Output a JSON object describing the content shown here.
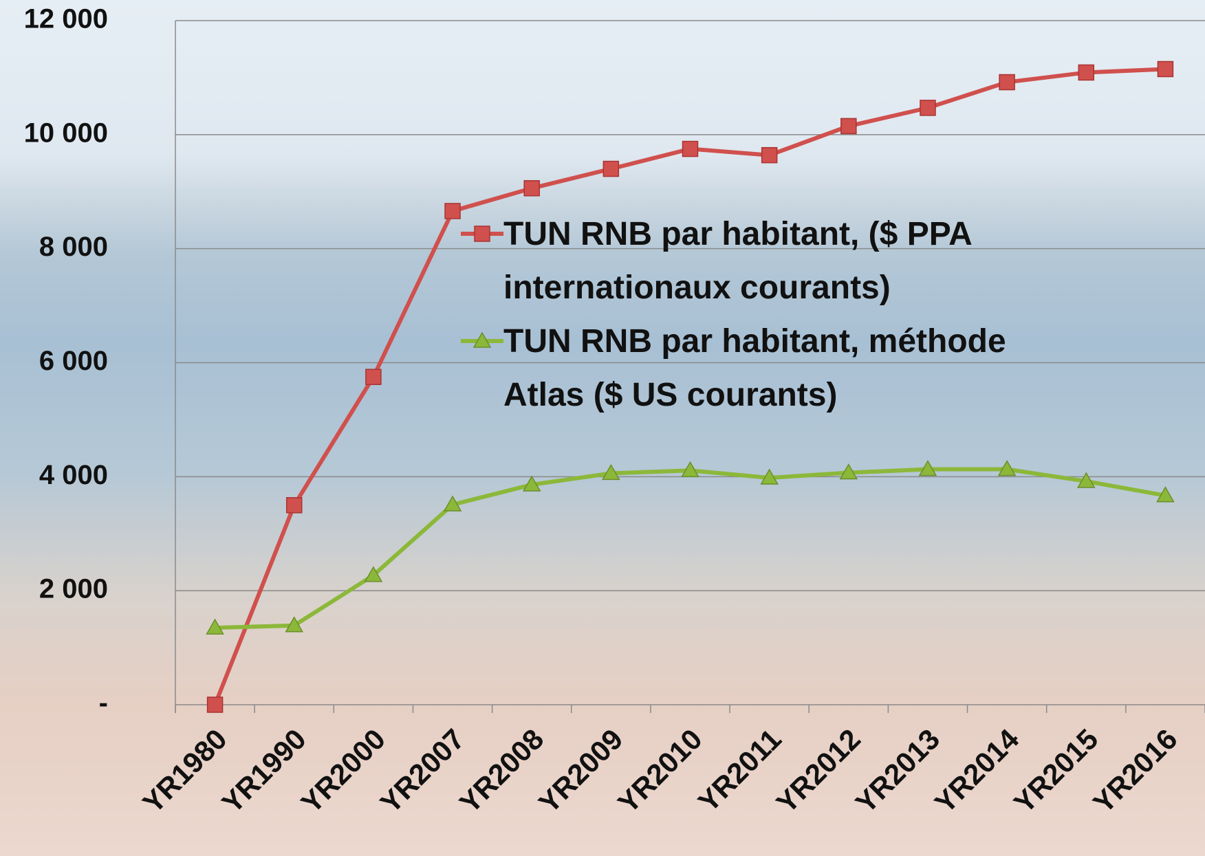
{
  "chart_data": {
    "type": "line",
    "categories": [
      "YR1980",
      "YR1990",
      "YR2000",
      "YR2007",
      "YR2008",
      "YR2009",
      "YR2010",
      "YR2011",
      "YR2012",
      "YR2013",
      "YR2014",
      "YR2015",
      "YR2016"
    ],
    "series": [
      {
        "name": "TUN RNB par habitant, ($ PPA internationaux courants)",
        "color": "#d0504d",
        "marker": "square",
        "values": [
          0,
          3500,
          5750,
          8660,
          9060,
          9400,
          9750,
          9640,
          10150,
          10470,
          10920,
          11090,
          11150
        ]
      },
      {
        "name": "TUN RNB par habitant, méthode Atlas ($ US courants)",
        "color": "#8cb83a",
        "marker": "triangle",
        "values": [
          1350,
          1390,
          2270,
          3510,
          3860,
          4060,
          4110,
          3980,
          4070,
          4130,
          4130,
          3920,
          3670
        ]
      }
    ],
    "ylim": [
      0,
      12000
    ],
    "yticks": [
      {
        "value": 0,
        "label": "-"
      },
      {
        "value": 2000,
        "label": "2 000"
      },
      {
        "value": 4000,
        "label": "4 000"
      },
      {
        "value": 6000,
        "label": "6 000"
      },
      {
        "value": 8000,
        "label": "8 000"
      },
      {
        "value": 10000,
        "label": "10 000"
      },
      {
        "value": 12000,
        "label": "12 000"
      }
    ],
    "grid": true
  }
}
